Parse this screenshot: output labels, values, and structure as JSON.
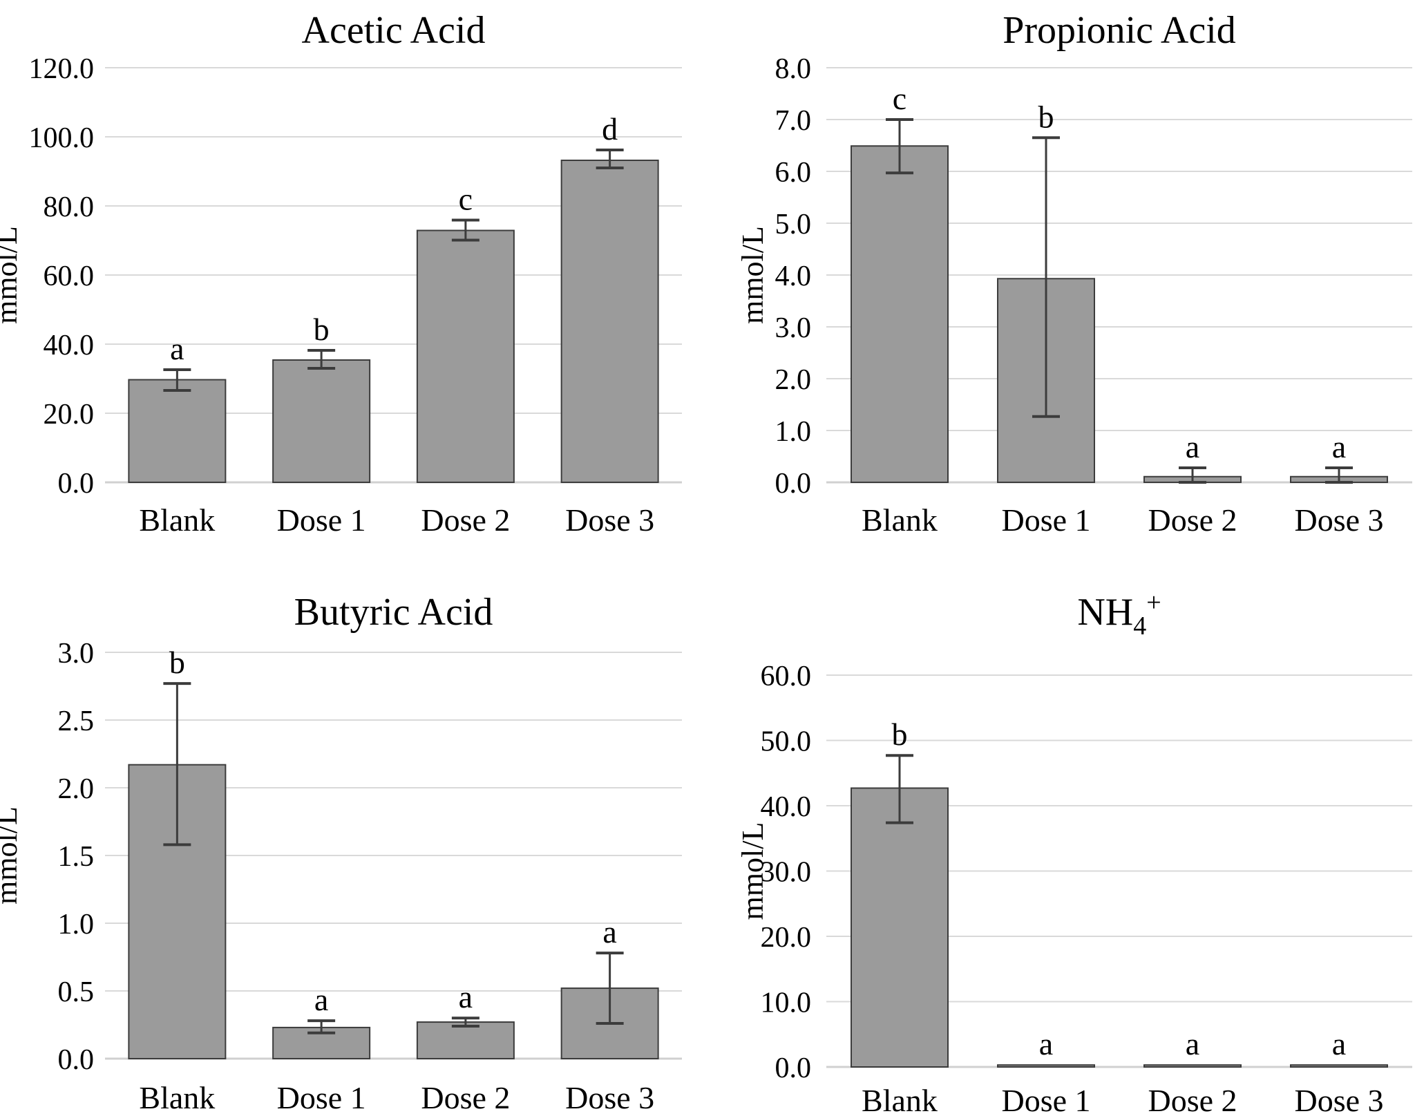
{
  "figure": {
    "background": "#ffffff",
    "text_color": "#000000",
    "bar_fill": "#9b9b9b",
    "bar_border": "#3c3c3c",
    "gridline_color": "#d9d9d9",
    "baseline_color": "#d0d0d0",
    "error_bar_color": "#3c3c3c",
    "unit_label": "mmol/L"
  },
  "chart_data": [
    {
      "type": "bar",
      "title": "Acetic Acid",
      "title_sub": "",
      "title_sup": "",
      "ylabel": "mmol/L",
      "xlabel": "",
      "categories": [
        "Blank",
        "Dose 1",
        "Dose 2",
        "Dose 3"
      ],
      "values": [
        29.7,
        35.4,
        72.9,
        93.2
      ],
      "error_low": [
        26.6,
        33.0,
        70.1,
        91.0
      ],
      "error_high": [
        32.6,
        38.2,
        75.9,
        96.2
      ],
      "sig_letters": [
        "a",
        "b",
        "c",
        "d"
      ],
      "ylim": [
        0,
        120
      ],
      "ytick_step": 20,
      "ytick_labels": [
        "0.0",
        "20.0",
        "40.0",
        "60.0",
        "80.0",
        "100.0",
        "120.0"
      ],
      "grid": true,
      "legend": false
    },
    {
      "type": "bar",
      "title": "Propionic Acid",
      "title_sub": "",
      "title_sup": "",
      "ylabel": "mmol/L",
      "xlabel": "",
      "categories": [
        "Blank",
        "Dose 1",
        "Dose 2",
        "Dose 3"
      ],
      "values": [
        6.49,
        3.93,
        0.11,
        0.11
      ],
      "error_low": [
        5.97,
        1.27,
        0.0,
        0.0
      ],
      "error_high": [
        7.0,
        6.65,
        0.28,
        0.28
      ],
      "sig_letters": [
        "c",
        "b",
        "a",
        "a"
      ],
      "ylim": [
        0,
        8
      ],
      "ytick_step": 1,
      "ytick_labels": [
        "0.0",
        "1.0",
        "2.0",
        "3.0",
        "4.0",
        "5.0",
        "6.0",
        "7.0",
        "8.0"
      ],
      "grid": true,
      "legend": false
    },
    {
      "type": "bar",
      "title": "Butyric Acid",
      "title_sub": "",
      "title_sup": "",
      "ylabel": "mmol/L",
      "xlabel": "",
      "categories": [
        "Blank",
        "Dose 1",
        "Dose 2",
        "Dose 3"
      ],
      "values": [
        2.17,
        0.23,
        0.27,
        0.52
      ],
      "error_low": [
        1.58,
        0.19,
        0.24,
        0.26
      ],
      "error_high": [
        2.77,
        0.28,
        0.3,
        0.78
      ],
      "sig_letters": [
        "b",
        "a",
        "a",
        "a"
      ],
      "ylim": [
        0,
        3
      ],
      "ytick_step": 0.5,
      "ytick_labels": [
        "0.0",
        "0.5",
        "1.0",
        "1.5",
        "2.0",
        "2.5",
        "3.0"
      ],
      "grid": true,
      "legend": false
    },
    {
      "type": "bar",
      "title": "NH",
      "title_sub": "4",
      "title_sup": "+",
      "ylabel": "mmol/L",
      "xlabel": "",
      "categories": [
        "Blank",
        "Dose 1",
        "Dose 2",
        "Dose 3"
      ],
      "values": [
        42.7,
        0.3,
        0.3,
        0.3
      ],
      "error_low": [
        37.4,
        null,
        null,
        null
      ],
      "error_high": [
        47.7,
        null,
        null,
        null
      ],
      "sig_letters": [
        "b",
        "a",
        "a",
        "a"
      ],
      "ylim": [
        0,
        60
      ],
      "ytick_step": 10,
      "ytick_labels": [
        "0.0",
        "10.0",
        "20.0",
        "30.0",
        "40.0",
        "50.0",
        "60.0"
      ],
      "grid": true,
      "legend": false
    }
  ]
}
